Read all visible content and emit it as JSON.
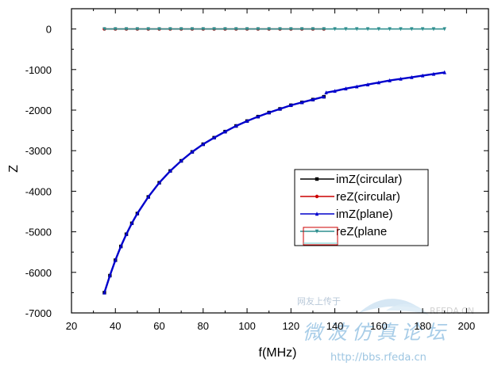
{
  "chart_data": {
    "type": "line",
    "title": "",
    "xlabel": "f(MHz)",
    "ylabel": "Z",
    "xlim": [
      20,
      210
    ],
    "ylim": [
      -7000,
      500
    ],
    "xticks": [
      20,
      40,
      60,
      80,
      100,
      120,
      140,
      160,
      180,
      200
    ],
    "yticks": [
      0,
      -1000,
      -2000,
      -3000,
      -4000,
      -5000,
      -6000,
      -7000
    ],
    "x_tick_labels": [
      "20",
      "40",
      "60",
      "80",
      "100",
      "120",
      "140",
      "160",
      "180",
      "200"
    ],
    "y_tick_labels": [
      "0",
      "-1000",
      "-2000",
      "-3000",
      "-4000",
      "-5000",
      "-6000",
      "-7000"
    ],
    "grid": false,
    "legend_position": "center-right",
    "series": [
      {
        "name": "imZ(circular)",
        "color": "#000000",
        "marker": "square",
        "x": [
          35,
          37.5,
          40,
          42.5,
          45,
          47.5,
          50,
          55,
          60,
          65,
          70,
          75,
          80,
          85,
          90,
          95,
          100,
          105,
          110,
          115,
          120,
          125,
          130,
          135
        ],
        "y": [
          -6500,
          -6080,
          -5700,
          -5360,
          -5060,
          -4790,
          -4550,
          -4140,
          -3790,
          -3500,
          -3250,
          -3030,
          -2840,
          -2680,
          -2530,
          -2390,
          -2270,
          -2160,
          -2060,
          -1970,
          -1880,
          -1810,
          -1740,
          -1670
        ]
      },
      {
        "name": "reZ(circular)",
        "color": "#cc0000",
        "marker": "circle",
        "x": [
          35,
          40,
          45,
          50,
          55,
          60,
          65,
          70,
          75,
          80,
          85,
          90,
          95,
          100,
          105,
          110,
          115,
          120,
          125,
          130,
          135
        ],
        "y": [
          0,
          0,
          0,
          0,
          0,
          0,
          0,
          0,
          0,
          0,
          0,
          0,
          0,
          0,
          0,
          0,
          0,
          0,
          0,
          0,
          0
        ]
      },
      {
        "name": "imZ(plane)",
        "color": "#0000cc",
        "marker": "triangle-up",
        "x": [
          35,
          37.5,
          40,
          42.5,
          45,
          47.5,
          50,
          55,
          60,
          65,
          70,
          75,
          80,
          85,
          90,
          95,
          100,
          105,
          110,
          115,
          120,
          125,
          130,
          135,
          136,
          140,
          145,
          150,
          155,
          160,
          165,
          170,
          175,
          180,
          185,
          190
        ],
        "y": [
          -6500,
          -6080,
          -5700,
          -5360,
          -5060,
          -4790,
          -4550,
          -4140,
          -3790,
          -3500,
          -3250,
          -3030,
          -2840,
          -2680,
          -2530,
          -2390,
          -2270,
          -2160,
          -2060,
          -1970,
          -1880,
          -1810,
          -1740,
          -1670,
          -1570,
          -1530,
          -1470,
          -1420,
          -1370,
          -1320,
          -1270,
          -1230,
          -1190,
          -1150,
          -1110,
          -1070
        ]
      },
      {
        "name": "reZ(plane",
        "color": "#2f8f8f",
        "marker": "triangle-down",
        "x": [
          35,
          40,
          45,
          50,
          55,
          60,
          65,
          70,
          75,
          80,
          85,
          90,
          95,
          100,
          105,
          110,
          115,
          120,
          125,
          130,
          135,
          140,
          145,
          150,
          155,
          160,
          165,
          170,
          175,
          180,
          185,
          190
        ],
        "y": [
          0,
          0,
          0,
          0,
          0,
          0,
          0,
          0,
          0,
          0,
          0,
          0,
          0,
          0,
          0,
          0,
          0,
          0,
          0,
          0,
          0,
          0,
          0,
          0,
          0,
          0,
          0,
          0,
          0,
          0,
          0,
          0
        ]
      }
    ]
  },
  "watermark": {
    "forum_text": "网友上传于",
    "brand": "RFEDA.CN",
    "slogan": "微波仿真论坛",
    "url": "http://bbs.rfeda.cn"
  }
}
